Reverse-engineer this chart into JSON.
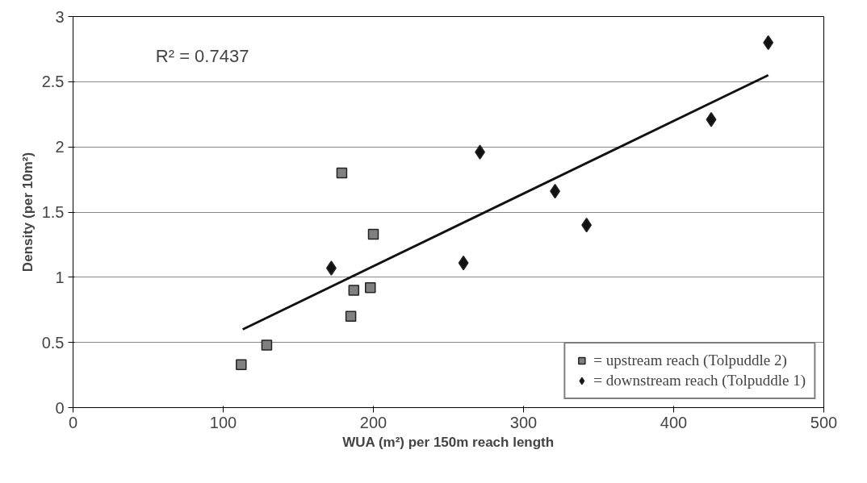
{
  "chart_data": {
    "type": "scatter",
    "xlabel": "WUA (m²) per 150m reach length",
    "ylabel": "Density (per 10m²)",
    "xlim": [
      0,
      500
    ],
    "xticks": [
      0,
      100,
      200,
      300,
      400,
      500
    ],
    "ylim": [
      0,
      3
    ],
    "yticks": [
      0,
      0.5,
      1,
      1.5,
      2,
      2.5,
      3
    ],
    "grid": "y",
    "legend": "bottom right",
    "annotations": [
      "R² = 0.7437"
    ],
    "series": [
      {
        "name": "= upstream reach (Tolpuddle 2)",
        "color": "#808080",
        "marker": "square",
        "x": [
          112,
          129,
          179,
          200,
          185,
          187,
          198
        ],
        "values": [
          0.33,
          0.48,
          1.8,
          1.33,
          0.7,
          0.9,
          0.92
        ]
      },
      {
        "name": "= downstream reach (Tolpuddle 1)",
        "color": "#111111",
        "marker": "diamond",
        "x": [
          172,
          260,
          271,
          321,
          342,
          425,
          463
        ],
        "values": [
          1.07,
          1.11,
          1.96,
          1.66,
          1.4,
          2.21,
          2.8
        ]
      },
      {
        "type": "line",
        "color": "#111111",
        "x": [
          113,
          463
        ],
        "values": [
          0.6,
          2.55
        ]
      }
    ]
  }
}
